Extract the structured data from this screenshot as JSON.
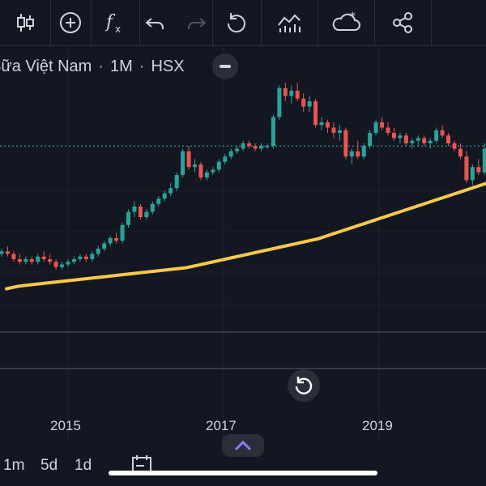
{
  "toolbar": {
    "items": [
      {
        "icon": "candles-icon"
      },
      {
        "icon": "plus-circle-icon"
      },
      {
        "icon": "function-icon"
      },
      {
        "icon": "undo-icon"
      },
      {
        "icon": "redo-icon"
      },
      {
        "icon": "refresh-icon"
      },
      {
        "icon": "indicators-icon"
      },
      {
        "icon": "cloud-save-icon"
      },
      {
        "icon": "share-icon"
      }
    ]
  },
  "legend": {
    "symbol": "Sữa Việt Nam",
    "interval": "1M",
    "exchange": "HSX",
    "separator": "·"
  },
  "colors": {
    "background": "#131722",
    "up": "#26a69a",
    "down": "#ef5350",
    "ma": "#f7c948",
    "price_line": "#4fb3b0"
  },
  "chart_data": {
    "type": "candlestick",
    "x_tick_labels": [
      "2015",
      "2017",
      "2019"
    ],
    "ohlc_relative": [
      [
        0.3,
        0.32,
        0.29,
        0.31
      ],
      [
        0.31,
        0.33,
        0.29,
        0.3
      ],
      [
        0.3,
        0.31,
        0.27,
        0.28
      ],
      [
        0.28,
        0.3,
        0.26,
        0.27
      ],
      [
        0.27,
        0.29,
        0.26,
        0.28
      ],
      [
        0.28,
        0.29,
        0.26,
        0.27
      ],
      [
        0.27,
        0.3,
        0.26,
        0.29
      ],
      [
        0.29,
        0.31,
        0.27,
        0.28
      ],
      [
        0.28,
        0.3,
        0.26,
        0.27
      ],
      [
        0.27,
        0.28,
        0.24,
        0.25
      ],
      [
        0.25,
        0.27,
        0.24,
        0.26
      ],
      [
        0.26,
        0.28,
        0.25,
        0.27
      ],
      [
        0.27,
        0.29,
        0.26,
        0.28
      ],
      [
        0.28,
        0.3,
        0.27,
        0.29
      ],
      [
        0.29,
        0.3,
        0.27,
        0.28
      ],
      [
        0.28,
        0.31,
        0.27,
        0.3
      ],
      [
        0.3,
        0.33,
        0.29,
        0.32
      ],
      [
        0.32,
        0.35,
        0.31,
        0.34
      ],
      [
        0.34,
        0.37,
        0.33,
        0.36
      ],
      [
        0.36,
        0.38,
        0.34,
        0.35
      ],
      [
        0.35,
        0.42,
        0.34,
        0.41
      ],
      [
        0.41,
        0.47,
        0.4,
        0.46
      ],
      [
        0.46,
        0.5,
        0.44,
        0.48
      ],
      [
        0.48,
        0.49,
        0.43,
        0.44
      ],
      [
        0.44,
        0.47,
        0.43,
        0.46
      ],
      [
        0.46,
        0.5,
        0.45,
        0.49
      ],
      [
        0.49,
        0.52,
        0.48,
        0.51
      ],
      [
        0.51,
        0.54,
        0.5,
        0.53
      ],
      [
        0.53,
        0.57,
        0.52,
        0.55
      ],
      [
        0.55,
        0.61,
        0.54,
        0.6
      ],
      [
        0.6,
        0.7,
        0.59,
        0.69
      ],
      [
        0.69,
        0.71,
        0.62,
        0.63
      ],
      [
        0.63,
        0.66,
        0.61,
        0.64
      ],
      [
        0.64,
        0.65,
        0.58,
        0.59
      ],
      [
        0.59,
        0.62,
        0.58,
        0.61
      ],
      [
        0.61,
        0.63,
        0.6,
        0.62
      ],
      [
        0.62,
        0.66,
        0.61,
        0.65
      ],
      [
        0.65,
        0.68,
        0.64,
        0.67
      ],
      [
        0.67,
        0.7,
        0.66,
        0.69
      ],
      [
        0.69,
        0.71,
        0.68,
        0.7
      ],
      [
        0.7,
        0.73,
        0.69,
        0.72
      ],
      [
        0.72,
        0.73,
        0.7,
        0.71
      ],
      [
        0.71,
        0.72,
        0.69,
        0.7
      ],
      [
        0.7,
        0.72,
        0.69,
        0.71
      ],
      [
        0.71,
        0.72,
        0.7,
        0.71
      ],
      [
        0.71,
        0.83,
        0.7,
        0.82
      ],
      [
        0.82,
        0.94,
        0.81,
        0.93
      ],
      [
        0.93,
        0.95,
        0.88,
        0.9
      ],
      [
        0.9,
        0.94,
        0.87,
        0.92
      ],
      [
        0.92,
        0.95,
        0.88,
        0.89
      ],
      [
        0.89,
        0.91,
        0.84,
        0.86
      ],
      [
        0.86,
        0.9,
        0.84,
        0.88
      ],
      [
        0.88,
        0.89,
        0.78,
        0.79
      ],
      [
        0.79,
        0.82,
        0.77,
        0.8
      ],
      [
        0.8,
        0.81,
        0.76,
        0.78
      ],
      [
        0.78,
        0.8,
        0.74,
        0.76
      ],
      [
        0.76,
        0.79,
        0.73,
        0.77
      ],
      [
        0.77,
        0.78,
        0.66,
        0.67
      ],
      [
        0.67,
        0.7,
        0.64,
        0.69
      ],
      [
        0.69,
        0.73,
        0.66,
        0.67
      ],
      [
        0.67,
        0.72,
        0.66,
        0.71
      ],
      [
        0.71,
        0.77,
        0.7,
        0.76
      ],
      [
        0.76,
        0.81,
        0.75,
        0.8
      ],
      [
        0.8,
        0.82,
        0.77,
        0.78
      ],
      [
        0.78,
        0.8,
        0.75,
        0.76
      ],
      [
        0.76,
        0.78,
        0.73,
        0.74
      ],
      [
        0.74,
        0.76,
        0.72,
        0.75
      ],
      [
        0.75,
        0.76,
        0.71,
        0.72
      ],
      [
        0.72,
        0.74,
        0.7,
        0.73
      ],
      [
        0.73,
        0.75,
        0.71,
        0.74
      ],
      [
        0.74,
        0.75,
        0.71,
        0.72
      ],
      [
        0.72,
        0.74,
        0.7,
        0.73
      ],
      [
        0.73,
        0.78,
        0.72,
        0.77
      ],
      [
        0.77,
        0.79,
        0.74,
        0.75
      ],
      [
        0.75,
        0.76,
        0.71,
        0.72
      ],
      [
        0.72,
        0.73,
        0.69,
        0.7
      ],
      [
        0.7,
        0.72,
        0.66,
        0.67
      ],
      [
        0.67,
        0.69,
        0.57,
        0.58
      ],
      [
        0.58,
        0.64,
        0.56,
        0.63
      ],
      [
        0.63,
        0.66,
        0.6,
        0.61
      ],
      [
        0.61,
        0.72,
        0.6,
        0.7
      ]
    ],
    "ma_relative": [
      0.18,
      0.19,
      0.195,
      0.2,
      0.205,
      0.21,
      0.215,
      0.22,
      0.225,
      0.23,
      0.235,
      0.24,
      0.245,
      0.25,
      0.255,
      0.26,
      0.27,
      0.28,
      0.29,
      0.3,
      0.31,
      0.32,
      0.33,
      0.34,
      0.35,
      0.36,
      0.37,
      0.385,
      0.4,
      0.415,
      0.43,
      0.445,
      0.46,
      0.475,
      0.49,
      0.505,
      0.52,
      0.535,
      0.55,
      0.565,
      0.58
    ],
    "price_line_relative": 0.71,
    "grid": true
  }
}
